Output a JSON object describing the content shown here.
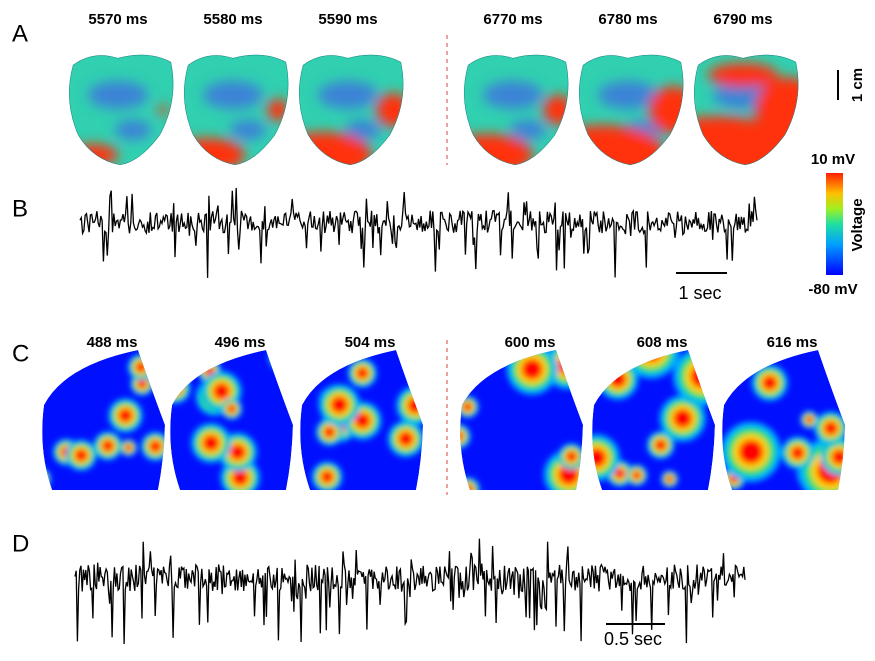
{
  "panel_a": {
    "label": "A",
    "frames": [
      "5570 ms",
      "5580 ms",
      "5590 ms",
      "6770 ms",
      "6780 ms",
      "6790 ms"
    ],
    "scale_bar": "1 cm"
  },
  "panel_b": {
    "label": "B",
    "scale_bar": "1 sec"
  },
  "colorbar": {
    "max": "10 mV",
    "min": "-80 mV",
    "title": "Voltage"
  },
  "panel_c": {
    "label": "C",
    "frames": [
      "488 ms",
      "496 ms",
      "504 ms",
      "600 ms",
      "608 ms",
      "616 ms"
    ]
  },
  "panel_d": {
    "label": "D",
    "scale_bar": "0.5 sec"
  }
}
